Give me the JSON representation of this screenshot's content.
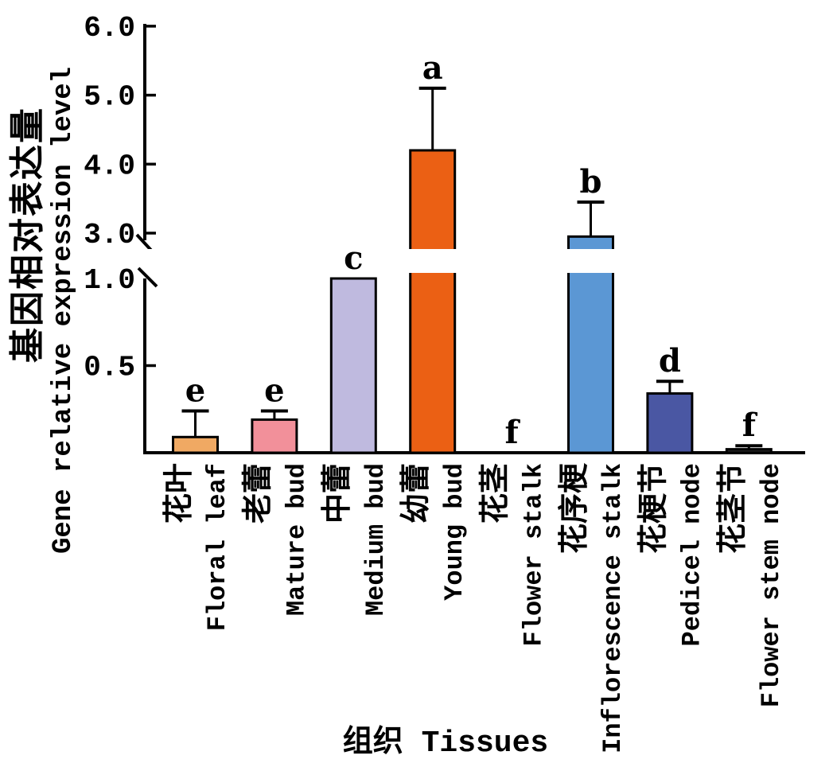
{
  "y_axis": {
    "label_zh": "基因相对表达量",
    "label_en": "Gene relative expression level",
    "top_tick_labels": [
      "6.0",
      "5.0",
      "4.0",
      "3.0"
    ],
    "top_tick_values": [
      6.0,
      5.0,
      4.0,
      3.0
    ],
    "bottom_tick_labels": [
      "1.0",
      "0.5"
    ],
    "bottom_tick_values": [
      1.0,
      0.5
    ]
  },
  "x_axis": {
    "label": "组织 Tissues"
  },
  "chart_data": {
    "type": "bar",
    "title": "",
    "xlabel": "组织 Tissues",
    "ylabel": "基因相对表达量 Gene relative expression level",
    "grid": false,
    "legend": false,
    "axis_break": {
      "lower_range": [
        0,
        1.0
      ],
      "upper_range": [
        3.0,
        6.0
      ]
    },
    "categories": [
      "花叶 Floral leaf",
      "老蕾 Mature bud",
      "中蕾 Medium bud",
      "幼蕾 Young bud",
      "花茎 Flower stalk",
      "花序梗 Inflorescence stalk",
      "花梗节 Pedicel node",
      "花茎节 Flower stem node"
    ],
    "bars": [
      {
        "label_zh": "花叶",
        "label_en": "Floral leaf",
        "value": 0.09,
        "error_top": 0.24,
        "sig_letter": "e",
        "color": "#F0A963"
      },
      {
        "label_zh": "老蕾",
        "label_en": "Mature bud",
        "value": 0.19,
        "error_top": 0.24,
        "sig_letter": "e",
        "color": "#F2909A"
      },
      {
        "label_zh": "中蕾",
        "label_en": "Medium bud",
        "value": 1.0,
        "error_top": null,
        "sig_letter": "c",
        "color": "#BFBADF"
      },
      {
        "label_zh": "幼蕾",
        "label_en": "Young bud",
        "value": 4.2,
        "error_top": 5.1,
        "sig_letter": "a",
        "color": "#EB6014"
      },
      {
        "label_zh": "花茎",
        "label_en": "Flower stalk",
        "value": 0,
        "error_top": null,
        "sig_letter": "f",
        "color": null
      },
      {
        "label_zh": "花序梗",
        "label_en": "Inflorescence stalk",
        "value": 2.95,
        "error_top": 3.45,
        "sig_letter": "b",
        "color": "#5B97D4"
      },
      {
        "label_zh": "花梗节",
        "label_en": "Pedicel node",
        "value": 0.34,
        "error_top": 0.41,
        "sig_letter": "d",
        "color": "#4A57A3"
      },
      {
        "label_zh": "花茎节",
        "label_en": "Flower stem node",
        "value": 0.02,
        "error_top": 0.04,
        "sig_letter": "f",
        "color": "#262626"
      }
    ]
  },
  "colors": {
    "axis": "#000000",
    "background": "#FFFFFF"
  }
}
